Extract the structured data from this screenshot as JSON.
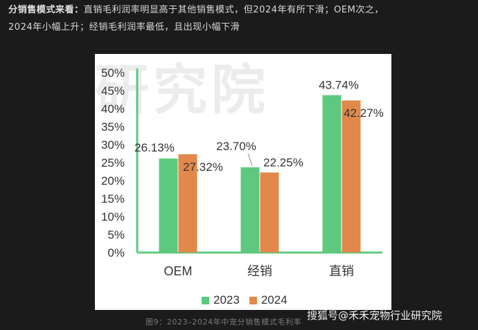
{
  "intro": {
    "lead": "分销售模式来看：",
    "line1_rest": "直销毛利润率明显高于其他销售模式，但2024年有所下滑；OEM次之，",
    "line2": "2024年小幅上升；经销毛利润率最低，且出现小幅下滑"
  },
  "watermark": "研究院",
  "caption": "图9：2023–2024年中宠分销售模式毛利率",
  "credit": "搜狐号@禾禾宠物行业研究院",
  "colors": {
    "series_2023": "#5cc97f",
    "series_2024": "#e2884a",
    "axis": "#5cc97f"
  },
  "chart_data": {
    "type": "bar",
    "categories": [
      "OEM",
      "经销",
      "直销"
    ],
    "series": [
      {
        "name": "2023",
        "values": [
          26.13,
          23.7,
          43.74
        ],
        "labels": [
          "26.13%",
          "23.70%",
          "43.74%"
        ]
      },
      {
        "name": "2024",
        "values": [
          27.32,
          22.25,
          42.27
        ],
        "labels": [
          "27.32%",
          "22.25%",
          "42.27%"
        ]
      }
    ],
    "ylim": [
      0,
      50
    ],
    "yticks": [
      "0%",
      "5%",
      "10%",
      "15%",
      "20%",
      "25%",
      "30%",
      "35%",
      "40%",
      "45%",
      "50%"
    ],
    "xlabel": "",
    "ylabel": "",
    "grid": false,
    "legend": "bottom"
  }
}
